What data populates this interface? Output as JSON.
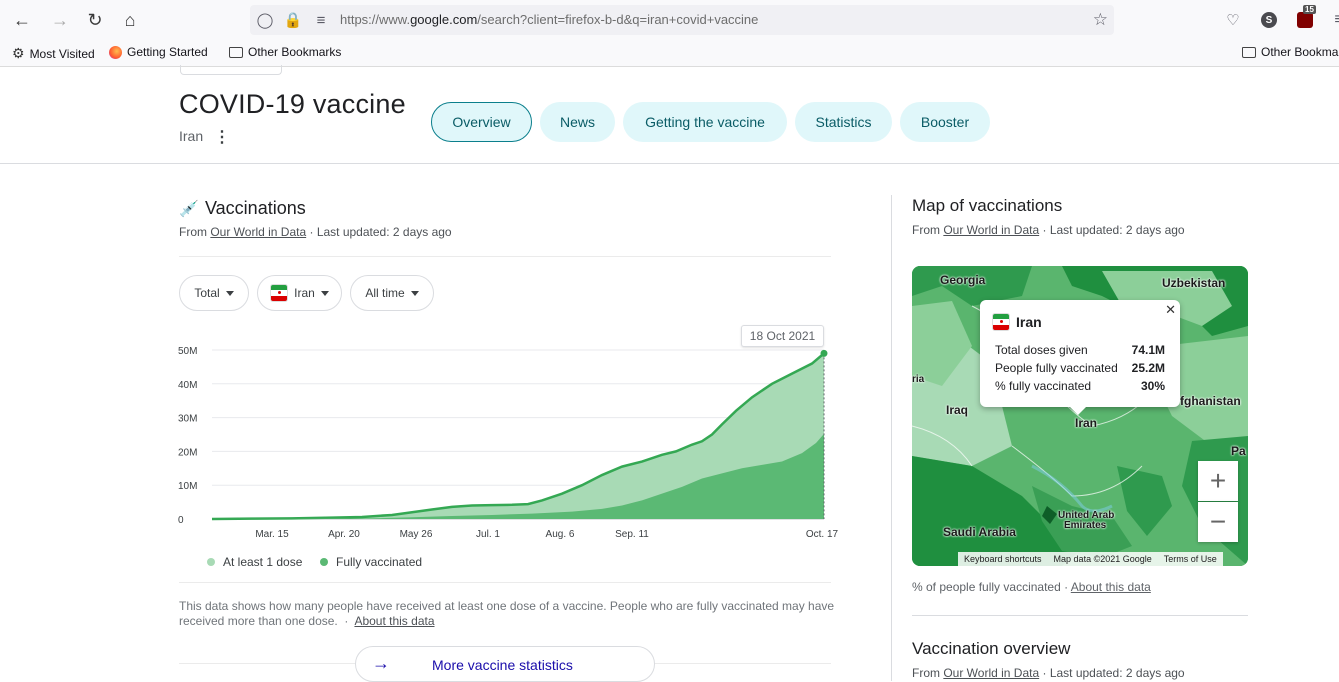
{
  "browser": {
    "url_prefix": "https://www.",
    "url_host": "google.com",
    "url_rest": "/search?client=firefox-b-d&q=iran+covid+vaccine",
    "account_initial": "S",
    "extension_badge": "15",
    "bookmarks": [
      "Most Visited",
      "Getting Started",
      "Other Bookmarks"
    ],
    "bookmarks_right": "Other Bookmarks"
  },
  "header": {
    "title": "COVID-19 vaccine",
    "subtitle": "Iran",
    "tabs": [
      "Overview",
      "News",
      "Getting the vaccine",
      "Statistics",
      "Booster"
    ],
    "active_tab": "Overview"
  },
  "vaccinations": {
    "title": "Vaccinations",
    "source_prefix": "From ",
    "source_link": "Our World in Data",
    "source_suffix": " · Last updated: 2 days ago",
    "filters": {
      "metric": "Total",
      "country": "Iran",
      "range": "All time"
    },
    "tooltip_date": "18 Oct 2021",
    "legend": [
      "At least 1 dose",
      "Fully vaccinated"
    ],
    "note": "This data shows how many people have received at least one dose of a vaccine. People who are fully vaccinated may have received more than one dose.",
    "note_link": "About this data",
    "more_button": "More vaccine statistics"
  },
  "chart_data": {
    "type": "area",
    "y_ticks": [
      "0",
      "10M",
      "20M",
      "30M",
      "40M",
      "50M"
    ],
    "x_ticks": [
      "Mar. 15",
      "Apr. 20",
      "May 26",
      "Jul. 1",
      "Aug. 6",
      "Sep. 11",
      "Oct. 17"
    ],
    "ylim": [
      0,
      50
    ],
    "y_unit": "M",
    "series": [
      {
        "name": "At least 1 dose",
        "color": "#a8dab5",
        "points": [
          [
            0,
            0
          ],
          [
            20,
            0.1
          ],
          [
            40,
            0.2
          ],
          [
            60,
            0.4
          ],
          [
            75,
            0.6
          ],
          [
            90,
            1.2
          ],
          [
            100,
            2
          ],
          [
            110,
            2.8
          ],
          [
            120,
            3.6
          ],
          [
            130,
            4
          ],
          [
            140,
            4.1
          ],
          [
            150,
            4.2
          ],
          [
            158,
            4.4
          ],
          [
            165,
            5.5
          ],
          [
            175,
            7.5
          ],
          [
            185,
            10
          ],
          [
            195,
            13
          ],
          [
            205,
            15.5
          ],
          [
            215,
            17
          ],
          [
            225,
            19
          ],
          [
            232,
            20
          ],
          [
            240,
            22
          ],
          [
            245,
            23
          ],
          [
            250,
            25
          ],
          [
            255,
            28
          ],
          [
            262,
            32
          ],
          [
            270,
            36
          ],
          [
            280,
            40
          ],
          [
            290,
            43
          ],
          [
            300,
            46
          ],
          [
            306,
            49
          ]
        ]
      },
      {
        "name": "Fully vaccinated",
        "color": "#5bb974",
        "points": [
          [
            0,
            0
          ],
          [
            40,
            0.05
          ],
          [
            80,
            0.2
          ],
          [
            100,
            0.5
          ],
          [
            120,
            0.9
          ],
          [
            140,
            1.2
          ],
          [
            160,
            1.6
          ],
          [
            180,
            2.2
          ],
          [
            195,
            3
          ],
          [
            205,
            4
          ],
          [
            215,
            5.5
          ],
          [
            225,
            7.5
          ],
          [
            235,
            9.5
          ],
          [
            245,
            12
          ],
          [
            255,
            13.5
          ],
          [
            265,
            15
          ],
          [
            275,
            16
          ],
          [
            285,
            17
          ],
          [
            295,
            19.5
          ],
          [
            302,
            22.5
          ],
          [
            306,
            25.2
          ]
        ]
      }
    ],
    "x_domain": [
      0,
      306
    ],
    "x_tick_positions": [
      30,
      66,
      102,
      138,
      174,
      210,
      246
    ]
  },
  "map": {
    "title": "Map of vaccinations",
    "source_prefix": "From ",
    "source_link": "Our World in Data",
    "source_suffix": " · Last updated: 2 days ago",
    "labels": [
      "Georgia",
      "Uzbekistan",
      "Iraq",
      "Iran",
      "fghanistan",
      "Saudi Arabia",
      "United Arab",
      "Emirates",
      "Pa",
      "ria"
    ],
    "popup": {
      "country": "Iran",
      "rows": [
        {
          "label": "Total doses given",
          "value": "74.1M"
        },
        {
          "label": "People fully vaccinated",
          "value": "25.2M"
        },
        {
          "label": "% fully vaccinated",
          "value": "30%"
        }
      ]
    },
    "attribution": [
      "Keyboard shortcuts",
      "Map data ©2021 Google",
      "Terms of Use"
    ],
    "footer_text": "% of people fully vaccinated",
    "footer_sep": " · ",
    "footer_link": "About this data"
  },
  "overview": {
    "title": "Vaccination overview",
    "source_prefix": "From ",
    "source_link": "Our World in Data",
    "source_suffix": " · Last updated: 2 days ago"
  }
}
